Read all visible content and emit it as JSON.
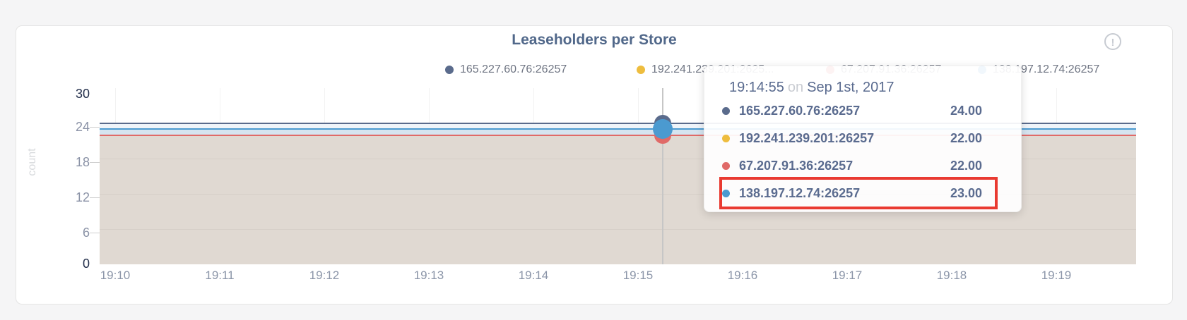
{
  "header": {
    "title": "Leaseholders per Store",
    "info_icon_glyph": "!"
  },
  "legend": {
    "items": [
      {
        "label": "165.227.60.76:26257"
      },
      {
        "label": "192.241.239.201:2625..."
      },
      {
        "label": "67.207.91.36:26257"
      },
      {
        "label": "138.197.12.74:26257"
      }
    ]
  },
  "tooltip": {
    "time": "19:14:55",
    "separator": "on",
    "date": "Sep 1st, 2017",
    "rows": [
      {
        "name": "165.227.60.76:26257",
        "value": "24.00"
      },
      {
        "name": "192.241.239.201:26257",
        "value": "22.00"
      },
      {
        "name": "67.207.91.36:26257",
        "value": "22.00"
      },
      {
        "name": "138.197.12.74:26257",
        "value": "23.00"
      }
    ],
    "highlighted_row": "138.197.12.74:26257"
  },
  "chart_data": {
    "type": "area",
    "title": "Leaseholders per Store",
    "ylabel": "count",
    "ylim": [
      0,
      30
    ],
    "y_ticks": [
      "30",
      "24",
      "18",
      "12",
      "6",
      "0"
    ],
    "x_ticks": [
      "19:10",
      "19:11",
      "19:12",
      "19:13",
      "19:14",
      "19:15",
      "19:16",
      "19:17",
      "19:18",
      "19:19"
    ],
    "legend_position": "top",
    "grid": true,
    "series": [
      {
        "name": "165.227.60.76:26257",
        "color": "#5a6b8c",
        "shape": "constant",
        "value": 24
      },
      {
        "name": "192.241.239.201:26257",
        "color": "#eebd3e",
        "shape": "constant",
        "value": 22
      },
      {
        "name": "67.207.91.36:26257",
        "color": "#e06a68",
        "shape": "constant",
        "value": 22
      },
      {
        "name": "138.197.12.74:26257",
        "color": "#4b9ad0",
        "shape": "constant",
        "value": 23
      }
    ],
    "hover": {
      "time": "19:14:55",
      "x_tick_near": "19:15"
    }
  }
}
